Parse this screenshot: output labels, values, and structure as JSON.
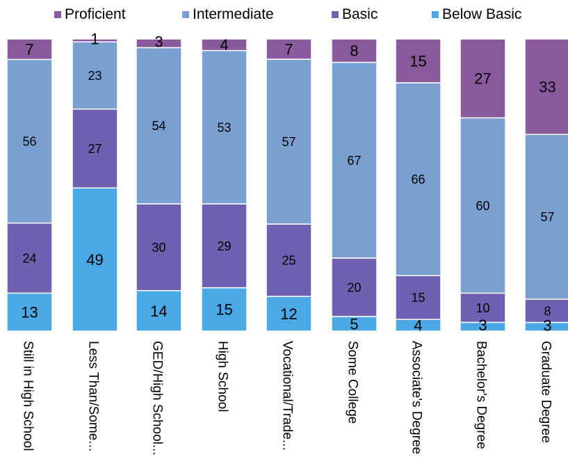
{
  "chart_data": {
    "type": "bar",
    "stacked": true,
    "percent": true,
    "categories": [
      "Still in High School",
      "Less Than/Some...",
      "GED/High School...",
      "High School",
      "Vocational/Trade...",
      "Some College",
      "Associate's Degree",
      "Bachelor's Degree",
      "Graduate Degree"
    ],
    "series": [
      {
        "name": "Below Basic",
        "color": "#4aa9e4",
        "values": [
          13,
          49,
          14,
          15,
          12,
          5,
          4,
          3,
          3
        ]
      },
      {
        "name": "Basic",
        "color": "#7060b0",
        "values": [
          24,
          27,
          30,
          29,
          25,
          20,
          15,
          10,
          8
        ]
      },
      {
        "name": "Intermediate",
        "color": "#7aa0d2",
        "values": [
          56,
          23,
          54,
          53,
          57,
          67,
          66,
          60,
          57
        ]
      },
      {
        "name": "Proficient",
        "color": "#8a5a9f",
        "values": [
          7,
          1,
          3,
          4,
          7,
          8,
          15,
          27,
          33
        ]
      }
    ],
    "legend": {
      "position": "top",
      "order": [
        "Proficient",
        "Intermediate",
        "Basic",
        "Below Basic"
      ]
    },
    "ylim": [
      0,
      100
    ],
    "title": "",
    "xlabel": "",
    "ylabel": "",
    "grid": false,
    "category_label_orientation": "vertical"
  }
}
